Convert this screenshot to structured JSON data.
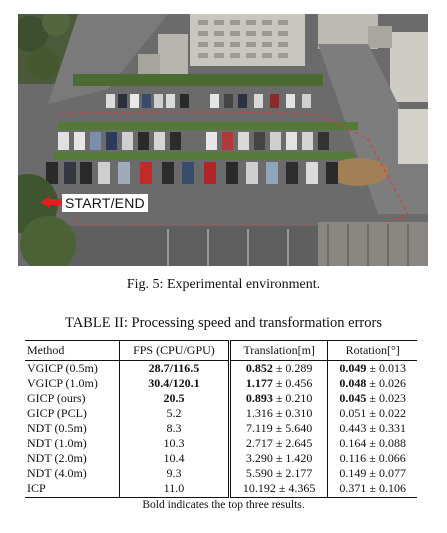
{
  "figure": {
    "start_label": "START/END",
    "caption": "Fig. 5: Experimental environment."
  },
  "table": {
    "caption": "TABLE II: Processing speed and transformation errors",
    "columns": [
      "Method",
      "FPS (CPU/GPU)",
      "Translation[m]",
      "Rotation[°]"
    ],
    "rows": [
      {
        "method": "VGICP (0.5m)",
        "fps": "28.7/116.5",
        "fps_bold": true,
        "trans_mean": "0.852",
        "trans_std": "0.289",
        "trans_bold": true,
        "rot_mean": "0.049",
        "rot_std": "0.013",
        "rot_bold": true
      },
      {
        "method": "VGICP (1.0m)",
        "fps": "30.4/120.1",
        "fps_bold": true,
        "trans_mean": "1.177",
        "trans_std": "0.456",
        "trans_bold": true,
        "rot_mean": "0.048",
        "rot_std": "0.026",
        "rot_bold": true
      },
      {
        "method": "GICP (ours)",
        "fps": "20.5",
        "fps_bold": true,
        "trans_mean": "0.893",
        "trans_std": "0.210",
        "trans_bold": true,
        "rot_mean": "0.045",
        "rot_std": "0.023",
        "rot_bold": true
      },
      {
        "method": "GICP (PCL)",
        "fps": "5.2",
        "fps_bold": false,
        "trans_mean": "1.316",
        "trans_std": "0.310",
        "trans_bold": false,
        "rot_mean": "0.051",
        "rot_std": "0.022",
        "rot_bold": false
      },
      {
        "method": "NDT (0.5m)",
        "fps": "8.3",
        "fps_bold": false,
        "trans_mean": "7.119",
        "trans_std": "5.640",
        "trans_bold": false,
        "rot_mean": "0.443",
        "rot_std": "0.331",
        "rot_bold": false
      },
      {
        "method": "NDT (1.0m)",
        "fps": "10.3",
        "fps_bold": false,
        "trans_mean": "2.717",
        "trans_std": "2.645",
        "trans_bold": false,
        "rot_mean": "0.164",
        "rot_std": "0.088",
        "rot_bold": false
      },
      {
        "method": "NDT (2.0m)",
        "fps": "10.4",
        "fps_bold": false,
        "trans_mean": "3.290",
        "trans_std": "1.420",
        "trans_bold": false,
        "rot_mean": "0.116",
        "rot_std": "0.066",
        "rot_bold": false
      },
      {
        "method": "NDT (4.0m)",
        "fps": "9.3",
        "fps_bold": false,
        "trans_mean": "5.590",
        "trans_std": "2.177",
        "trans_bold": false,
        "rot_mean": "0.149",
        "rot_std": "0.077",
        "rot_bold": false
      },
      {
        "method": "ICP",
        "fps": "11.0",
        "fps_bold": false,
        "trans_mean": "10.192",
        "trans_std": "4.365",
        "trans_bold": false,
        "rot_mean": "0.371",
        "rot_std": "0.106",
        "rot_bold": false
      }
    ],
    "pm_symbol": "±",
    "footnote": "Bold indicates the top three results."
  }
}
